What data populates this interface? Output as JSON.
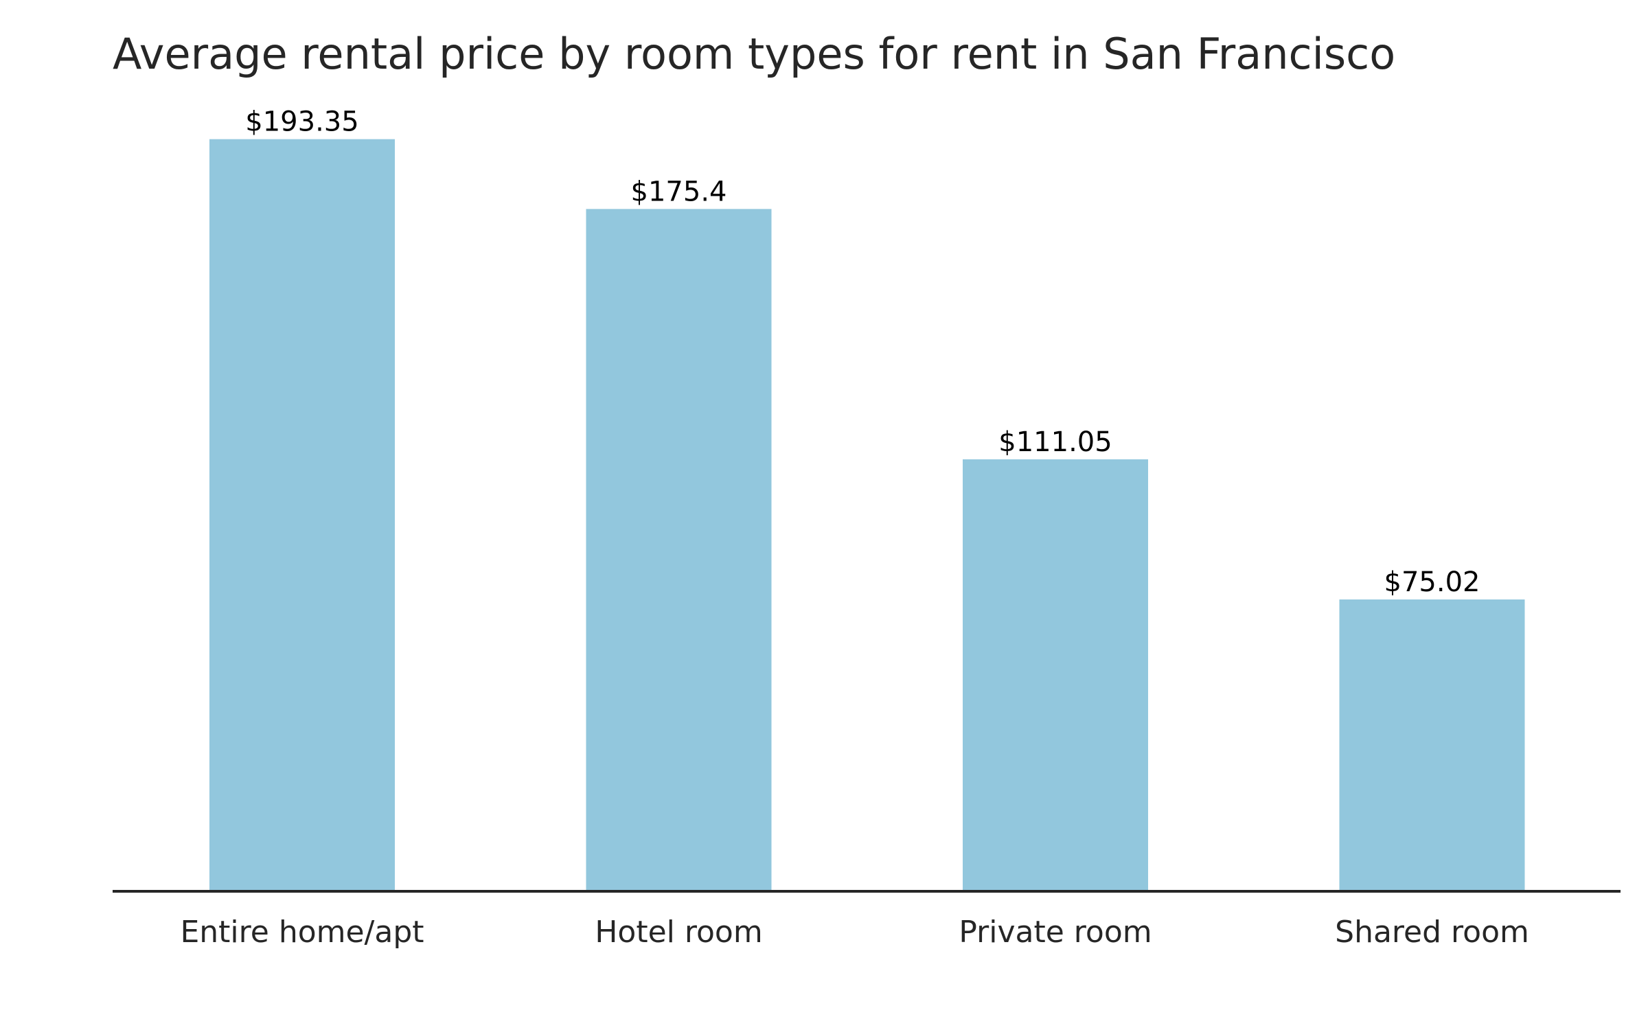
{
  "chart_data": {
    "type": "bar",
    "title": "Average rental price by room types for rent in San Francisco",
    "xlabel": "",
    "ylabel": "",
    "categories": [
      "Entire home/apt",
      "Hotel room",
      "Private room",
      "Shared room"
    ],
    "values": [
      193.35,
      175.4,
      111.05,
      75.02
    ],
    "data_labels": [
      "$193.35",
      "$175.4",
      "$111.05",
      "$75.02"
    ],
    "ylim": [
      0,
      203
    ],
    "grid": false,
    "legend": "none",
    "bar_color": "#92c7dd",
    "axis_color": "#262626"
  }
}
